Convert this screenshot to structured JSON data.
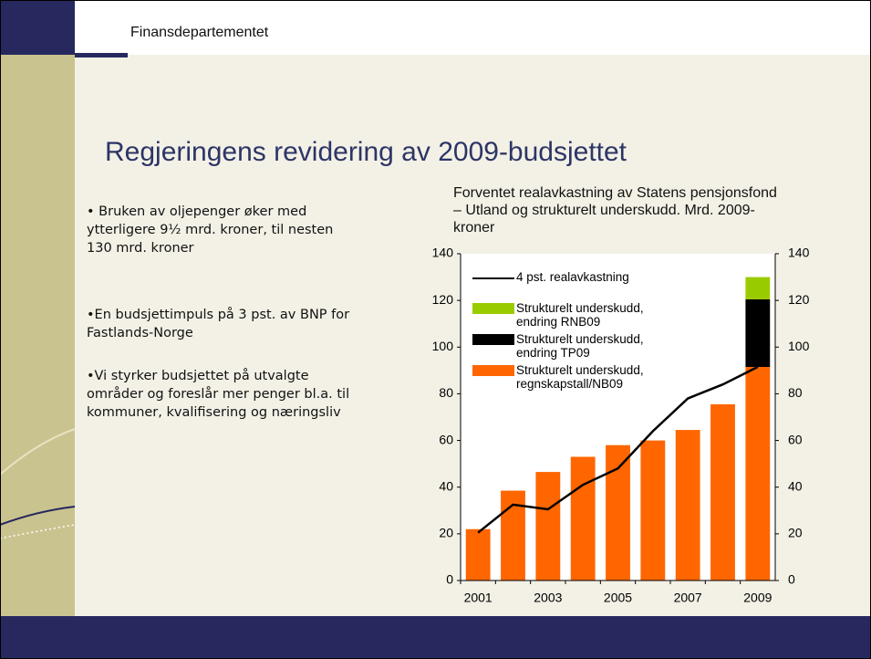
{
  "header": {
    "org": "Finansdepartementet"
  },
  "title": "Regjeringens revidering av 2009-budsjettet",
  "bullets": [
    "• Bruken av oljepenger øker med ytterligere 9½ mrd. kroner, til nesten 130 mrd. kroner",
    "•En budsjettimpuls på 3 pst. av BNP for Fastlands-Norge",
    "•Vi styrker budsjettet på utvalgte områder og foreslår mer penger bl.a. til kommuner, kvalifisering og næringsliv"
  ],
  "chart_data": {
    "type": "bar",
    "stacked": true,
    "title": "Forventet realavkastning av Statens pensjonsfond – Utland og strukturelt underskudd. Mrd. 2009-kroner",
    "categories": [
      "2001",
      null,
      "2003",
      null,
      "2005",
      null,
      "2007",
      null,
      "2009"
    ],
    "series": [
      {
        "name": "Strukturelt underskudd, regnskapstall/NB09",
        "color": "#ff6600",
        "values": [
          22,
          38.5,
          46.5,
          53,
          58,
          60,
          64.5,
          75.5,
          91.5
        ]
      },
      {
        "name": "Strukturelt underskudd, endring TP09",
        "color": "#000000",
        "values": [
          null,
          null,
          null,
          null,
          null,
          null,
          null,
          null,
          29
        ]
      },
      {
        "name": "Strukturelt underskudd, endring RNB09",
        "color": "#99cc00",
        "values": [
          null,
          null,
          null,
          null,
          null,
          null,
          null,
          null,
          9.5
        ]
      },
      {
        "name": "4 pst. realavkastning",
        "color": "#000000",
        "type": "line",
        "values": [
          20.5,
          32.5,
          30.5,
          41,
          48,
          64,
          78,
          84,
          91.5
        ]
      }
    ],
    "ylim": [
      0,
      140
    ],
    "yticks": [
      0,
      20,
      40,
      60,
      80,
      100,
      120,
      140
    ],
    "y2lim": [
      0,
      140
    ],
    "y2ticks": [
      0,
      20,
      40,
      60,
      80,
      100,
      120,
      140
    ]
  }
}
